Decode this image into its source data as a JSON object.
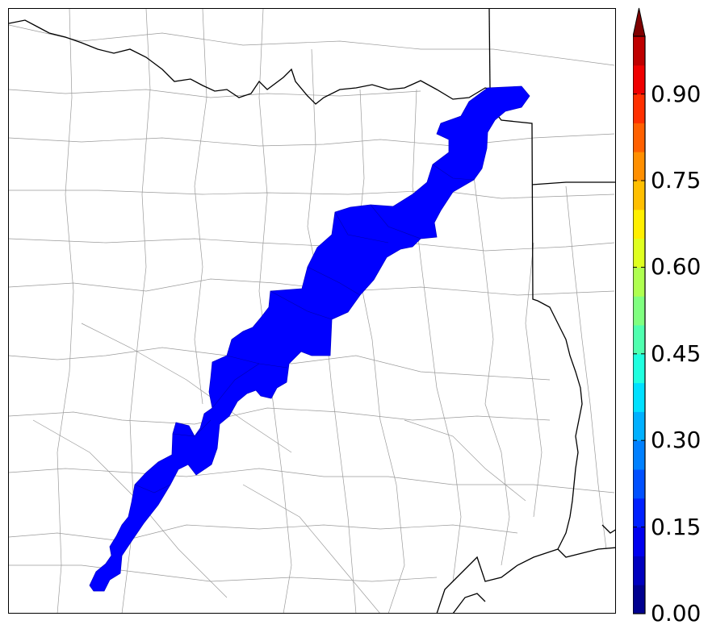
{
  "map": {
    "fill_color": "#0000ff",
    "border_color": "#000000",
    "county_line_color": "#9a9a9a"
  },
  "colorbar": {
    "vmin": 0.0,
    "vmax": 1.0,
    "extend": "max",
    "tick_values": [
      0.0,
      0.15,
      0.3,
      0.45,
      0.6,
      0.75,
      0.9
    ],
    "tick_labels": [
      "0.00",
      "0.15",
      "0.30",
      "0.45",
      "0.60",
      "0.75",
      "0.90"
    ],
    "colors": [
      "#00008f",
      "#0000bf",
      "#0000ef",
      "#0020ff",
      "#0050ff",
      "#0080ff",
      "#00b0ff",
      "#00e0ff",
      "#20ffdf",
      "#50ffaf",
      "#80ff80",
      "#afff50",
      "#dfff20",
      "#ffef00",
      "#ffbf00",
      "#ff8f00",
      "#ff6000",
      "#ff3000",
      "#ef0000",
      "#bf0000"
    ],
    "over_color": "#800000"
  }
}
